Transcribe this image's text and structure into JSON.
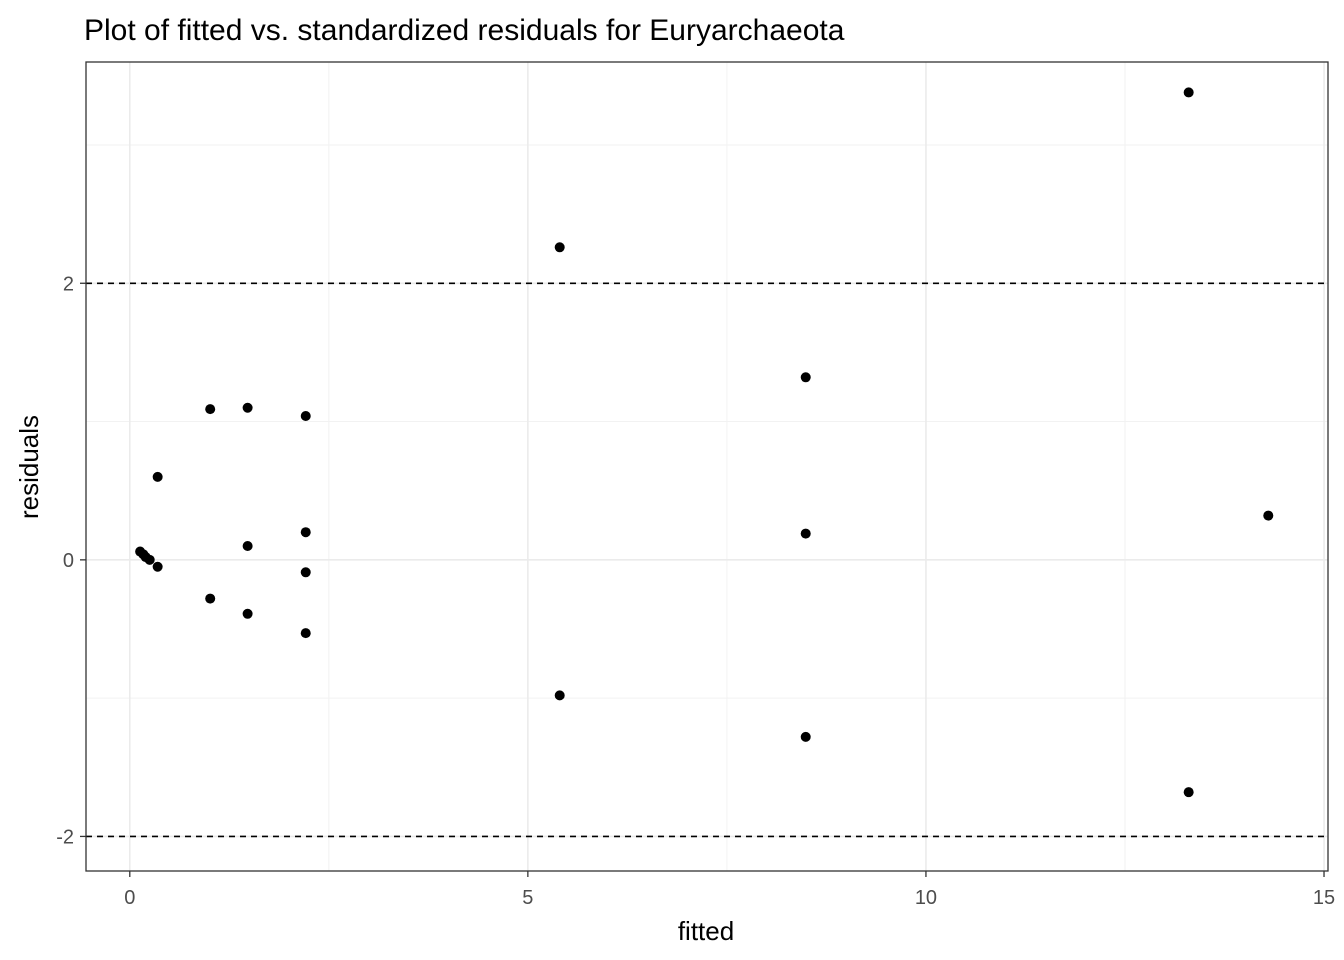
{
  "chart_data": {
    "type": "scatter",
    "title": "Plot of fitted vs. standardized residuals for Euryarchaeota",
    "xlabel": "fitted",
    "ylabel": "residuals",
    "xlim": [
      -0.55,
      15.05
    ],
    "ylim": [
      -2.25,
      3.6
    ],
    "x_ticks": [
      0,
      5,
      10,
      15
    ],
    "y_ticks": [
      -2,
      0,
      2
    ],
    "x_tick_labels": [
      "0",
      "5",
      "10",
      "15"
    ],
    "y_tick_labels": [
      "-2",
      "0",
      "2"
    ],
    "grid": true,
    "reference_lines": [
      2,
      -2
    ],
    "points": [
      {
        "x": 0.13,
        "y": 0.06
      },
      {
        "x": 0.17,
        "y": 0.04
      },
      {
        "x": 0.2,
        "y": 0.02
      },
      {
        "x": 0.25,
        "y": 0.0
      },
      {
        "x": 0.35,
        "y": 0.6
      },
      {
        "x": 0.35,
        "y": -0.05
      },
      {
        "x": 1.01,
        "y": 1.09
      },
      {
        "x": 1.01,
        "y": -0.28
      },
      {
        "x": 1.48,
        "y": 1.1
      },
      {
        "x": 1.48,
        "y": 0.1
      },
      {
        "x": 1.48,
        "y": -0.39
      },
      {
        "x": 2.21,
        "y": 1.04
      },
      {
        "x": 2.21,
        "y": 0.2
      },
      {
        "x": 2.21,
        "y": -0.09
      },
      {
        "x": 2.21,
        "y": -0.53
      },
      {
        "x": 5.4,
        "y": 2.26
      },
      {
        "x": 5.4,
        "y": -0.98
      },
      {
        "x": 8.49,
        "y": 1.32
      },
      {
        "x": 8.49,
        "y": 0.19
      },
      {
        "x": 8.49,
        "y": -1.28
      },
      {
        "x": 13.3,
        "y": 3.38
      },
      {
        "x": 13.3,
        "y": -1.68
      },
      {
        "x": 14.3,
        "y": 0.32
      }
    ]
  }
}
